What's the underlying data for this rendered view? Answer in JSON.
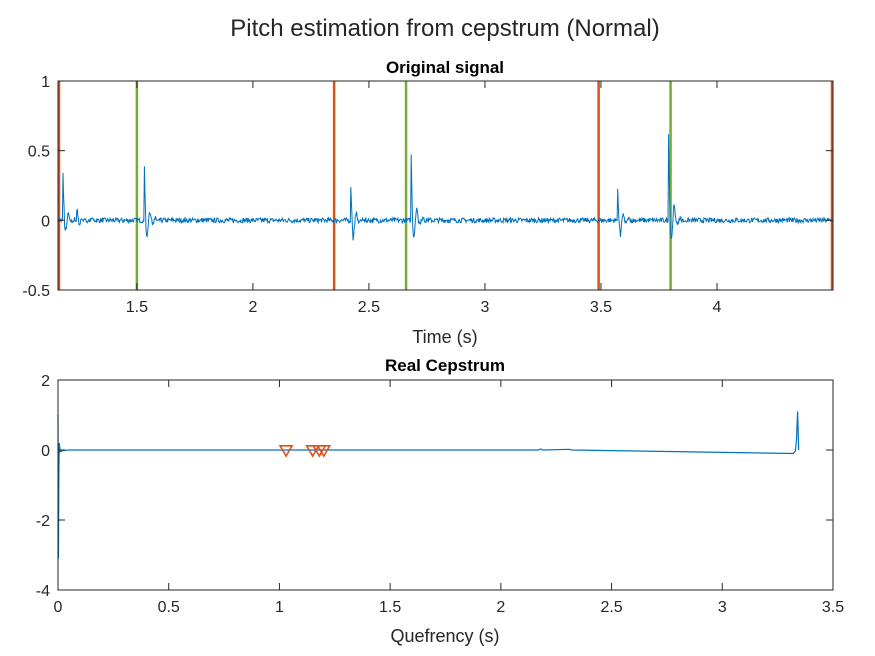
{
  "figure": {
    "suptitle": "Pitch estimation from cepstrum (Normal)"
  },
  "colors": {
    "signal": "#0072BD",
    "orange": "#D95319",
    "green": "#77AC30",
    "axes": "#262626"
  },
  "chart_data": [
    {
      "type": "line",
      "title": "Original signal",
      "xlabel": "Time (s)",
      "ylabel": "",
      "xlim": [
        1.16,
        4.5
      ],
      "ylim": [
        -0.5,
        1
      ],
      "xticks": [
        1.5,
        2,
        2.5,
        3,
        3.5,
        4
      ],
      "xtick_labels": [
        "1.5",
        "2",
        "2.5",
        "3",
        "3.5",
        "4"
      ],
      "yticks": [
        -0.5,
        0,
        0.5,
        1
      ],
      "ytick_labels": [
        "-0.5",
        "0",
        "0.5",
        "1"
      ],
      "grid": false,
      "vertical_lines": [
        {
          "color": "orange",
          "x": [
            1.16,
            2.35,
            3.49,
            4.5
          ]
        },
        {
          "color": "green",
          "x": [
            1.5,
            2.66,
            3.8
          ]
        }
      ],
      "series": [
        {
          "color": "signal",
          "bursts": [
            {
              "x": 1.18,
              "pos": 0.36,
              "neg": -0.2
            },
            {
              "x": 1.24,
              "pos": 0.1,
              "neg": -0.08
            },
            {
              "x": 1.53,
              "pos": 0.48,
              "neg": -0.33
            },
            {
              "x": 2.42,
              "pos": 0.33,
              "neg": -0.34
            },
            {
              "x": 2.68,
              "pos": 0.64,
              "neg": -0.34
            },
            {
              "x": 3.57,
              "pos": 0.27,
              "neg": -0.28
            },
            {
              "x": 3.79,
              "pos": 0.72,
              "neg": -0.38
            }
          ]
        }
      ]
    },
    {
      "type": "line",
      "title": "Real Cepstrum",
      "xlabel": "Quefrency (s)",
      "ylabel": "",
      "xlim": [
        0,
        3.5
      ],
      "ylim": [
        -4,
        2
      ],
      "xticks": [
        0,
        0.5,
        1,
        1.5,
        2,
        2.5,
        3,
        3.5
      ],
      "xtick_labels": [
        "0",
        "0.5",
        "1",
        "1.5",
        "2",
        "2.5",
        "3",
        "3.5"
      ],
      "yticks": [
        -4,
        -2,
        0,
        2
      ],
      "ytick_labels": [
        "-4",
        "-2",
        "0",
        "2"
      ],
      "grid": false,
      "series": [
        {
          "color": "signal",
          "x": [
            0,
            0.002,
            0.004,
            0.006,
            0.01,
            0.02,
            0.05,
            2.17,
            2.18,
            2.19,
            2.31,
            2.32,
            3.32,
            3.33,
            3.335,
            3.34,
            3.345
          ],
          "y": [
            1.0,
            -3.1,
            -0.6,
            0.2,
            -0.05,
            -0.02,
            0.0,
            0.0,
            0.03,
            0.0,
            0.02,
            0.0,
            -0.1,
            -0.03,
            0.3,
            1.1,
            0.0
          ]
        }
      ],
      "markers": {
        "color": "orange",
        "shape": "triangle-down",
        "x": [
          1.03,
          1.15,
          1.18,
          1.2
        ],
        "y": [
          0,
          0,
          0,
          0
        ]
      }
    }
  ]
}
